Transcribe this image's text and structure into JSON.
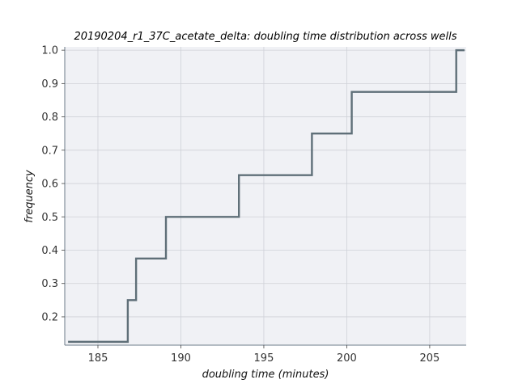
{
  "chart_data": {
    "type": "line",
    "subtype": "ecdf-step",
    "title": "20190204_r1_37C_acetate_delta: doubling time distribution across wells",
    "xlabel": "doubling time (minutes)",
    "ylabel": "frequency",
    "xlim": [
      183,
      207.2
    ],
    "ylim": [
      0.115,
      1.01
    ],
    "xticks": [
      185,
      190,
      195,
      200,
      205
    ],
    "yticks": [
      0.2,
      0.3,
      0.4,
      0.5,
      0.6,
      0.7,
      0.8,
      0.9,
      1.0
    ],
    "grid": true,
    "series": [
      {
        "x": [
          183.2,
          186.8,
          187.3,
          189.1,
          193.5,
          197.9,
          200.3,
          206.6,
          207.1
        ],
        "y": [
          0.125,
          0.25,
          0.375,
          0.5,
          0.625,
          0.75,
          0.875,
          1.0,
          1.0
        ]
      }
    ],
    "colors": {
      "line": "#5f6f78",
      "plot_background": "#f0f1f5",
      "grid": "#cfd1d8",
      "axis": "#6b7a88"
    }
  }
}
